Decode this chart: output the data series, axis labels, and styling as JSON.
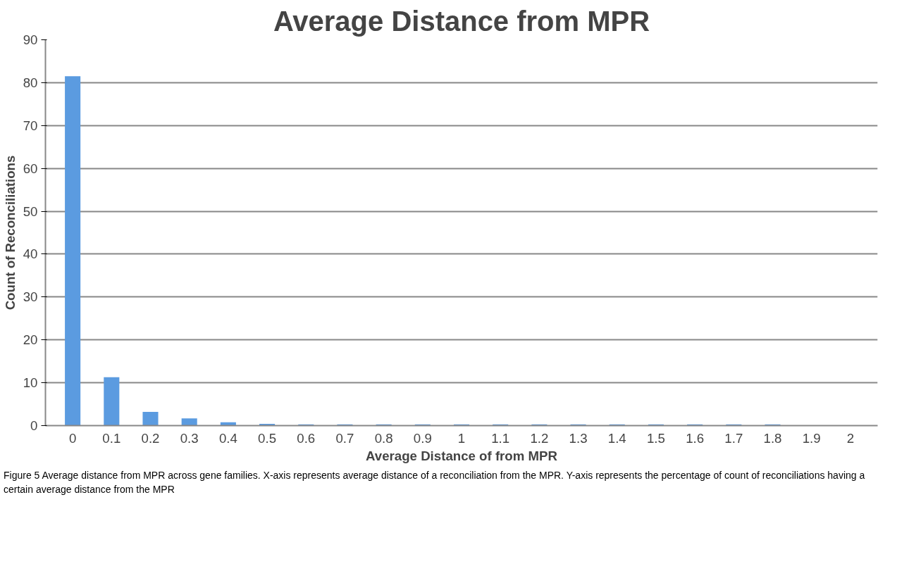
{
  "chart_data": {
    "type": "bar",
    "title": "Average Distance from MPR",
    "xlabel": "Average Distance of from MPR",
    "ylabel": "Count of Reconciliations",
    "categories": [
      "0",
      "0.1",
      "0.2",
      "0.3",
      "0.4",
      "0.5",
      "0.6",
      "0.7",
      "0.8",
      "0.9",
      "1",
      "1.1",
      "1.2",
      "1.3",
      "1.4",
      "1.5",
      "1.6",
      "1.7",
      "1.8",
      "1.9",
      "2"
    ],
    "values": [
      81.5,
      11.3,
      3.2,
      1.7,
      0.8,
      0.4,
      0.3,
      0.3,
      0.3,
      0.3,
      0.3,
      0.3,
      0.3,
      0.3,
      0.3,
      0.3,
      0.3,
      0.3,
      0.3,
      0,
      0
    ],
    "color": "#5b9be0",
    "ylim": [
      0,
      90
    ],
    "yticks": [
      0,
      10,
      20,
      30,
      40,
      50,
      60,
      70,
      80,
      90
    ],
    "grid": "y",
    "annotations": [
      "Figure 5 Average distance from MPR across gene families. X-axis represents average distance of a reconciliation from the MPR. Y-axis represents the percentage of count of reconciliations having a certain average distance from the MPR"
    ]
  }
}
